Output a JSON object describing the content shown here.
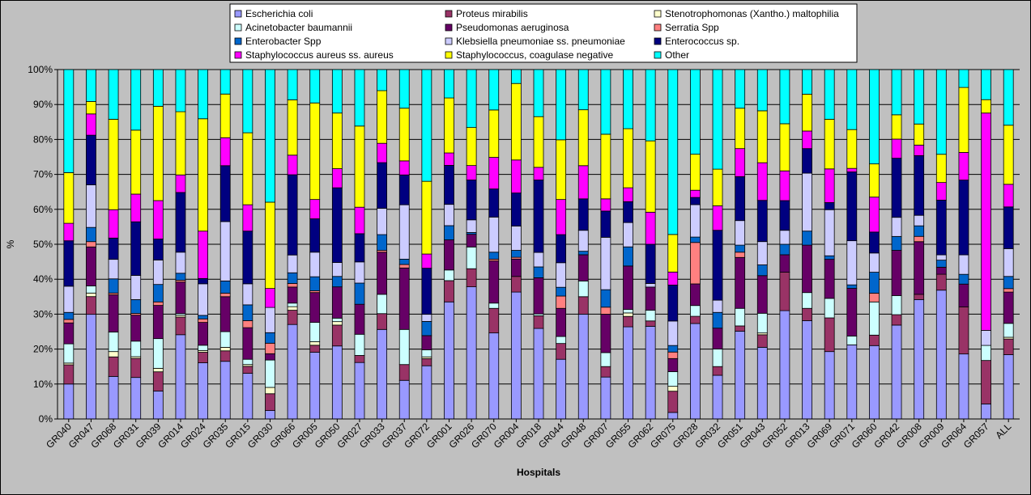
{
  "chart_data": {
    "type": "bar",
    "stacked": "percent",
    "categories": [
      "GR040",
      "GR047",
      "GR068",
      "GR031",
      "GR039",
      "GR014",
      "GR024",
      "GR035",
      "GR015",
      "GR030",
      "GR066",
      "GR005",
      "GR050",
      "GR027",
      "GR033",
      "GR037",
      "GR072",
      "GR001",
      "GR026",
      "GR070",
      "GR004",
      "GR018",
      "GR044",
      "GR048",
      "GR007",
      "GR055",
      "GR062",
      "GR075",
      "GR028",
      "GR032",
      "GR051",
      "GR043",
      "GR052",
      "GR013",
      "GR069",
      "GR071",
      "GR060",
      "GR042",
      "GR008",
      "GR009",
      "GR064",
      "GR057",
      "ALL"
    ],
    "xlabel": "Hospitals",
    "ylabel": "%",
    "ylim": [
      0,
      100
    ],
    "ytick_labels": [
      "0%",
      "10%",
      "20%",
      "30%",
      "40%",
      "50%",
      "60%",
      "70%",
      "80%",
      "90%",
      "100%"
    ],
    "legend_position": "top",
    "series": [
      {
        "name": "Escherichia coli",
        "color": "#9999ff",
        "values": [
          10,
          29.5,
          12,
          12,
          8,
          24,
          16,
          16.5,
          13,
          2,
          26.5,
          19,
          21,
          16,
          25.5,
          11,
          15,
          33,
          36.5,
          24.5,
          36.5,
          25,
          17,
          30,
          12,
          26.5,
          26,
          2,
          26.5,
          12.5,
          25,
          20,
          31,
          28,
          19,
          21,
          21,
          27,
          34,
          36.5,
          20,
          4.5,
          18.5
        ]
      },
      {
        "name": "Proteus mirabilis",
        "color": "#993366",
        "values": [
          5.5,
          5,
          5.5,
          5.5,
          5.5,
          5,
          3,
          3,
          2,
          4,
          4,
          2,
          6,
          2,
          4.5,
          4.5,
          2,
          6,
          5,
          7,
          4.5,
          3.5,
          4.5,
          5,
          3,
          3,
          1.5,
          6.5,
          2,
          2.5,
          1.5,
          3.5,
          11,
          3.5,
          9.5,
          0,
          3,
          3,
          1.5,
          4.5,
          14.5,
          13,
          4.5
        ]
      },
      {
        "name": "Stenotrophomonas (Xantho.) maltophilia",
        "color": "#ffffcc",
        "values": [
          0.5,
          1,
          1.5,
          0.5,
          1,
          0.5,
          0.5,
          1,
          0.5,
          1.5,
          1,
          1,
          1,
          0,
          0,
          0,
          0.5,
          0,
          0,
          0,
          0,
          0,
          0,
          0,
          0,
          1,
          0,
          1.5,
          0,
          0,
          0,
          0.5,
          0,
          0,
          0,
          0,
          0,
          0,
          0,
          0,
          0,
          0,
          0.5
        ]
      },
      {
        "name": "Acinetobacter baumannii",
        "color": "#ccffff",
        "values": [
          5.5,
          2,
          5.5,
          4.5,
          8.5,
          0.5,
          1.5,
          4.5,
          1.5,
          6.5,
          1,
          5.5,
          1,
          6,
          5.5,
          10,
          2,
          3,
          6,
          1.5,
          0,
          0.5,
          2,
          4.5,
          4,
          1,
          3,
          4.5,
          3,
          5,
          5,
          5.5,
          0,
          4.5,
          5.5,
          2.5,
          9.5,
          5.5,
          0,
          0,
          0,
          4.5,
          4
        ]
      },
      {
        "name": "Pseudomonas aeruginosa",
        "color": "#660066",
        "values": [
          6,
          11,
          10.5,
          7.5,
          9.5,
          9,
          6.5,
          10,
          9,
          1.5,
          4.5,
          8.5,
          9,
          8.5,
          12,
          17.5,
          4,
          8.5,
          3.5,
          12,
          5,
          10,
          8,
          7.5,
          11,
          12.5,
          6.5,
          4,
          6,
          6,
          14.5,
          10.5,
          5,
          13.5,
          11,
          13.5,
          0,
          13,
          15,
          2,
          7,
          0,
          9
        ]
      },
      {
        "name": "Serratia Spp",
        "color": "#ff8080",
        "values": [
          1,
          1.5,
          0.5,
          0.5,
          1,
          0.5,
          1,
          1,
          2,
          2.5,
          1,
          0.5,
          0,
          0,
          0.5,
          1,
          0,
          0,
          0,
          0.5,
          0.5,
          0,
          3.5,
          0,
          2,
          0,
          0,
          2,
          11.5,
          0,
          1.5,
          0,
          0,
          0,
          0,
          0,
          2.5,
          0,
          1.5,
          0,
          0,
          0,
          1
        ]
      },
      {
        "name": "Enterobacter Spp",
        "color": "#0066cc",
        "values": [
          2,
          4,
          4,
          4,
          5,
          2,
          1,
          3.5,
          4.5,
          2.5,
          3,
          4,
          3,
          6,
          4.5,
          1.5,
          4,
          4,
          0.5,
          2,
          2,
          3,
          2.5,
          1,
          5,
          5.5,
          0,
          2,
          1.5,
          4.5,
          2,
          3,
          3,
          4,
          1,
          1,
          6,
          4,
          3,
          2,
          3,
          0,
          3.5
        ]
      },
      {
        "name": "Klebsiella pneumoniae ss. pneumoniae",
        "color": "#ccccff",
        "values": [
          7.5,
          12,
          5.5,
          7,
          7,
          6,
          9,
          17,
          6,
          6,
          5,
          7,
          4,
          6,
          7.5,
          15.5,
          2,
          6,
          3.5,
          10,
          7,
          4,
          7,
          6,
          15,
          7,
          1,
          7.5,
          9,
          3.5,
          7,
          6.5,
          4,
          16.5,
          13,
          12.5,
          5.5,
          5.5,
          3,
          1.5,
          6,
          4.5,
          8
        ]
      },
      {
        "name": "Enterococcus sp.",
        "color": "#000080",
        "values": [
          13,
          14,
          6,
          15.5,
          6,
          17,
          1.5,
          16,
          15,
          0,
          22.5,
          9.5,
          21.5,
          8,
          13,
          8.5,
          13,
          11,
          11,
          8,
          9.5,
          20,
          8,
          9,
          7.5,
          6,
          11,
          11,
          2,
          20,
          12.5,
          11.5,
          8.5,
          7,
          2,
          19.5,
          6,
          17,
          17,
          15.5,
          23,
          0,
          12
        ]
      },
      {
        "name": "Staphylococcus aureus ss. aureus",
        "color": "#ff00ff",
        "values": [
          5,
          6,
          8,
          8,
          11,
          5,
          13.5,
          8,
          7.5,
          4.5,
          5.5,
          5.5,
          5.5,
          7.5,
          5.5,
          4,
          4,
          3.5,
          4,
          9,
          9.5,
          3.5,
          10,
          9.5,
          3.5,
          4,
          9,
          4,
          2,
          7,
          8,
          10.5,
          8.5,
          5,
          9.5,
          1,
          10,
          5.5,
          3,
          5,
          8.5,
          65,
          6.5
        ]
      },
      {
        "name": "Staphylococcus, coagulase negative",
        "color": "#ffff00",
        "values": [
          14.5,
          3.5,
          25.5,
          18.5,
          27,
          18,
          32,
          12.5,
          20.5,
          20.5,
          15.5,
          27.5,
          16,
          23,
          15,
          15,
          20.5,
          15.5,
          10.5,
          13.5,
          22,
          14,
          17,
          16,
          18.5,
          17,
          20,
          11.5,
          10,
          10.5,
          11.5,
          14.5,
          13.5,
          10.5,
          14,
          11,
          9.5,
          7,
          6,
          8,
          20,
          4,
          17
        ]
      },
      {
        "name": "Other",
        "color": "#00ffff",
        "values": [
          29.5,
          9,
          14,
          17.5,
          10.5,
          12,
          14,
          7,
          18,
          31.5,
          8.5,
          9.5,
          12.5,
          16,
          6,
          11,
          31.5,
          8,
          16,
          11.5,
          4,
          13,
          20,
          11.5,
          18.5,
          17,
          20,
          50.5,
          23.5,
          28.5,
          11,
          11.5,
          15.5,
          7,
          14,
          17,
          27,
          13,
          15.5,
          24,
          5.5,
          9,
          16
        ]
      }
    ]
  }
}
